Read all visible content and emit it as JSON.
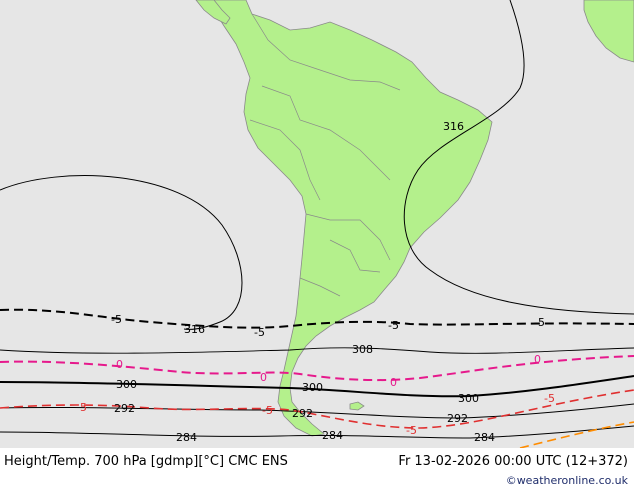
{
  "footer": {
    "title": "Height/Temp. 700 hPa [gdmp][°C] CMC ENS",
    "valid": "Fr 13-02-2026 00:00 UTC (12+372)",
    "credit": "©weatheronline.co.uk"
  },
  "contours": {
    "height": [
      "316",
      "316",
      "308",
      "300",
      "300",
      "300",
      "292",
      "292",
      "292",
      "284",
      "284",
      "284"
    ],
    "temperature": [
      "-5",
      "-5",
      "-5",
      "-5",
      "0",
      "0",
      "0",
      "0",
      "5",
      "-5",
      "-5",
      "-5"
    ]
  },
  "colors": {
    "ocean": "#e6e6e6",
    "land": "#b4f08c",
    "height_contour": "#000000",
    "temp_0": "#e6198c",
    "temp_5": "#e03030",
    "temp_minus5": "#000000"
  }
}
